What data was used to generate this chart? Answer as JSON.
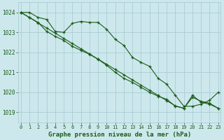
{
  "title": "Graphe pression niveau de la mer (hPa)",
  "background_color": "#cde8ec",
  "grid_color": "#aacdd4",
  "line_color": "#1a5c1a",
  "ylim": [
    1018.5,
    1024.5
  ],
  "xlim": [
    -0.3,
    23.3
  ],
  "yticks": [
    1019,
    1020,
    1021,
    1022,
    1023,
    1024
  ],
  "xticks": [
    0,
    1,
    2,
    3,
    4,
    5,
    6,
    7,
    8,
    9,
    10,
    11,
    12,
    13,
    14,
    15,
    16,
    17,
    18,
    19,
    20,
    21,
    22,
    23
  ],
  "line1_x": [
    0,
    1,
    2,
    3,
    4,
    5,
    6,
    7,
    8,
    9,
    10,
    11,
    12,
    13,
    14,
    15,
    16,
    17,
    18,
    19,
    20,
    21,
    22,
    23
  ],
  "line1_y": [
    1024.0,
    1024.0,
    1023.75,
    1023.65,
    1023.05,
    1023.0,
    1023.45,
    1023.55,
    1023.5,
    1023.5,
    1023.15,
    1022.65,
    1022.35,
    1021.75,
    1021.5,
    1021.3,
    1020.7,
    1020.4,
    1019.85,
    1019.3,
    1019.3,
    1019.4,
    1019.6,
    1020.0
  ],
  "line2_x": [
    0,
    1,
    2,
    3,
    4,
    5,
    6,
    7,
    8,
    9,
    10,
    11,
    12,
    13,
    14,
    15,
    16,
    17,
    18,
    19,
    20,
    21,
    22,
    23
  ],
  "line2_y": [
    1024.0,
    1023.74,
    1023.48,
    1023.22,
    1022.96,
    1022.7,
    1022.44,
    1022.18,
    1021.92,
    1021.66,
    1021.4,
    1021.14,
    1020.88,
    1020.62,
    1020.36,
    1020.1,
    1019.84,
    1019.58,
    1019.32,
    1019.2,
    1019.75,
    1019.55,
    1019.45,
    1019.2
  ],
  "line3_x": [
    0,
    1,
    2,
    3,
    4,
    5,
    6,
    7,
    8,
    9,
    10,
    11,
    12,
    13,
    14,
    15,
    16,
    17,
    18,
    19,
    20,
    21,
    22,
    23
  ],
  "line3_y": [
    1024.0,
    1023.75,
    1023.5,
    1023.05,
    1022.8,
    1022.6,
    1022.3,
    1022.1,
    1021.9,
    1021.65,
    1021.35,
    1021.0,
    1020.7,
    1020.5,
    1020.25,
    1020.0,
    1019.8,
    1019.65,
    1019.3,
    1019.2,
    1019.85,
    1019.5,
    1019.4,
    1019.2
  ]
}
